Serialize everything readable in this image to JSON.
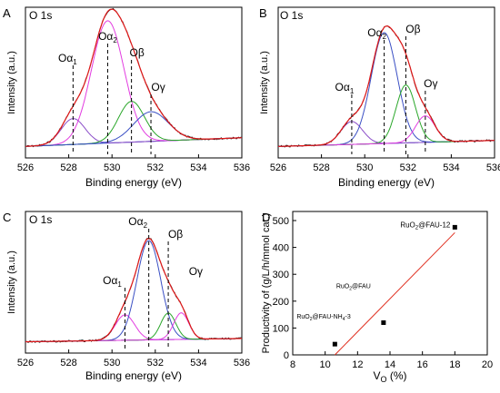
{
  "chart_data": [
    {
      "type": "line",
      "letter": "A",
      "title": "O 1s",
      "xlabel": "Binding energy (eV)",
      "ylabel": "Intensity (a.u.)",
      "xlim": [
        526,
        536
      ],
      "xreverse": false,
      "xticks": [
        526,
        528,
        530,
        532,
        534,
        536
      ],
      "grid": false,
      "peaks": [
        {
          "name": "Oα1",
          "label_base": "Oα",
          "label_sub": "1",
          "center": 528.2,
          "sigma": 0.55,
          "height": 0.21,
          "color": "#8a4cc8",
          "line": true
        },
        {
          "name": "Oα2",
          "label_base": "Oα",
          "label_sub": "2",
          "center": 529.8,
          "sigma": 0.75,
          "height": 0.99,
          "color": "#e23ce0",
          "line": true
        },
        {
          "name": "Oβ",
          "label_base": "Oβ",
          "label_sub": "",
          "center": 530.9,
          "sigma": 0.6,
          "height": 0.33,
          "color": "#29a629",
          "line": true
        },
        {
          "name": "Oγ",
          "label_base": "Oγ",
          "label_sub": "",
          "center": 531.8,
          "sigma": 0.8,
          "height": 0.24,
          "color": "#3a4fc4",
          "line": true
        }
      ],
      "baseline": {
        "start": 0.02,
        "end": 0.09
      }
    },
    {
      "type": "line",
      "letter": "B",
      "title": "O 1s",
      "xlabel": "Binding energy (eV)",
      "ylabel": "Intensity (a.u.)",
      "xlim": [
        526,
        536
      ],
      "xreverse": false,
      "xticks": [
        526,
        528,
        530,
        532,
        534,
        536
      ],
      "grid": false,
      "peaks": [
        {
          "name": "Oα1",
          "label_base": "Oα",
          "label_sub": "1",
          "center": 529.4,
          "sigma": 0.5,
          "height": 0.19,
          "color": "#8a4cc8",
          "line": true
        },
        {
          "name": "Oα2",
          "label_base": "Oα",
          "label_sub": "2",
          "center": 530.9,
          "sigma": 0.6,
          "height": 0.92,
          "color": "#3a4fc4",
          "line": true
        },
        {
          "name": "Oβ",
          "label_base": "Oβ",
          "label_sub": "",
          "center": 531.9,
          "sigma": 0.45,
          "height": 0.48,
          "color": "#29a629",
          "line": true
        },
        {
          "name": "Oγ",
          "label_base": "Oγ",
          "label_sub": "",
          "center": 532.8,
          "sigma": 0.45,
          "height": 0.22,
          "color": "#e23ce0",
          "line": true
        }
      ],
      "baseline": {
        "start": 0.02,
        "end": 0.07
      }
    },
    {
      "type": "line",
      "letter": "C",
      "title": "O 1s",
      "xlabel": "Binding energy (eV)",
      "ylabel": "Intensity (a.u.)",
      "xlim": [
        526,
        536
      ],
      "xreverse": false,
      "xticks": [
        526,
        528,
        530,
        532,
        534,
        536
      ],
      "grid": false,
      "peaks": [
        {
          "name": "Oα1",
          "label_base": "Oα",
          "label_sub": "1",
          "center": 530.6,
          "sigma": 0.45,
          "height": 0.23,
          "color": "#e23ce0",
          "line": true
        },
        {
          "name": "Oα2",
          "label_base": "Oα",
          "label_sub": "2",
          "center": 531.7,
          "sigma": 0.55,
          "height": 0.9,
          "color": "#3a4fc4",
          "line": true
        },
        {
          "name": "Oβ",
          "label_base": "Oβ",
          "label_sub": "",
          "center": 532.6,
          "sigma": 0.35,
          "height": 0.24,
          "color": "#29a629",
          "line": true
        },
        {
          "name": "Oγ",
          "label_base": "Oγ",
          "label_sub": "",
          "center": 533.2,
          "sigma": 0.35,
          "height": 0.24,
          "color": "#e23ce0",
          "line": false
        }
      ],
      "baseline": {
        "start": 0.02,
        "end": 0.05
      }
    },
    {
      "type": "scatter",
      "letter": "D",
      "xlabel_base": "V",
      "xlabel_sub": "O",
      "xlabel_unit": " (%)",
      "ylabel": "Productivity of (g/L/h/mmol cat.)",
      "xlim": [
        8,
        20
      ],
      "ylim": [
        0,
        500
      ],
      "xticks": [
        8,
        10,
        12,
        14,
        16,
        18,
        20
      ],
      "yticks": [
        0,
        100,
        200,
        300,
        400,
        500
      ],
      "grid": false,
      "points": [
        {
          "x": 10.6,
          "y": 40,
          "label": "RuO2@FAU-NH4-3"
        },
        {
          "x": 13.6,
          "y": 120,
          "label": "RuO2@FAU"
        },
        {
          "x": 18.0,
          "y": 475,
          "label": "RuO2@FAU-12"
        }
      ],
      "fit_line": {
        "x": [
          10.6,
          18.0
        ],
        "y": [
          0,
          455
        ],
        "color": "#e03020"
      }
    }
  ],
  "annotations": {
    "d_labels": [
      {
        "parts": [
          "RuO",
          "2",
          "@FAU-NH",
          "4",
          "-3"
        ]
      },
      {
        "parts": [
          "RuO",
          "2",
          "@FAU"
        ]
      },
      {
        "parts": [
          "RuO",
          "2",
          "@FAU-12"
        ]
      }
    ]
  }
}
